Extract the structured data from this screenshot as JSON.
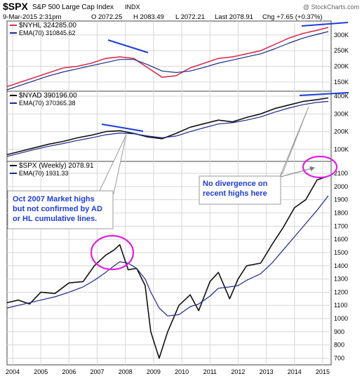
{
  "header": {
    "symbol": "$SPX",
    "name": "S&P 500 Large Cap Index",
    "exchange": "INDX",
    "credit": "@ StockCharts.com",
    "date": "9-Mar-2015 2:31pm",
    "open": "O 2072.25",
    "high": "H 2083.49",
    "low": "L 2072.21",
    "last": "Last 2078.91",
    "change": "Chg +7.65 (+0.37%)"
  },
  "colors": {
    "nyhl": "#d9304f",
    "ema": "#1a2a8a",
    "line_black": "#111111",
    "annotation": "#1f3ddb",
    "circle": "#e020e0",
    "grid": "#d6d6d6",
    "callout_border": "#9a9a9a"
  },
  "panels": [
    {
      "id": "nyhl",
      "legend": [
        {
          "label": "$NYHL 324285.00",
          "color": "#d9304f"
        },
        {
          "label": "EMA(70) 310845.62",
          "color": "#1a2a8a"
        }
      ],
      "ticks": [
        "150K",
        "200K",
        "250K",
        "300K"
      ]
    },
    {
      "id": "nyad",
      "legend": [
        {
          "label": "$NYAD 390196.00",
          "color": "#111111"
        },
        {
          "label": "EMA(70) 370365.38",
          "color": "#1a2a8a"
        }
      ],
      "ticks": [
        "100K",
        "200K",
        "300K",
        "400K"
      ]
    },
    {
      "id": "spx",
      "legend": [
        {
          "label": "$SPX (Weekly) 2078.91",
          "color": "#111111"
        },
        {
          "label": "EMA(70) 1931.33",
          "color": "#1a2a8a"
        }
      ],
      "ticks": [
        "700",
        "800",
        "900",
        "1000",
        "1100",
        "1200",
        "1300",
        "1400",
        "1500",
        "1600",
        "1700",
        "1800",
        "1900",
        "2000",
        "2100"
      ]
    }
  ],
  "annotations": {
    "left_callout": "Oct 2007 Market highs but not confirmed by AD or HL cumulative lines.",
    "right_callout": "No divergence on recent highs here"
  },
  "chart_data": [
    {
      "type": "line",
      "panel": "nyhl",
      "x": [
        2003.8,
        2004.3,
        2004.8,
        2005.3,
        2005.8,
        2006.3,
        2006.8,
        2007.3,
        2007.8,
        2008.3,
        2008.8,
        2009.3,
        2009.8,
        2010.3,
        2010.8,
        2011.3,
        2011.8,
        2012.3,
        2012.8,
        2013.3,
        2013.8,
        2014.3,
        2014.8,
        2015.2
      ],
      "series": [
        {
          "name": "$NYHL",
          "values": [
            135000,
            150000,
            165000,
            180000,
            195000,
            200000,
            210000,
            225000,
            230000,
            225000,
            195000,
            165000,
            170000,
            195000,
            210000,
            225000,
            230000,
            240000,
            250000,
            270000,
            290000,
            305000,
            315000,
            324285
          ]
        },
        {
          "name": "EMA(70)",
          "values": [
            125000,
            140000,
            155000,
            170000,
            182000,
            192000,
            202000,
            212000,
            222000,
            222000,
            205000,
            185000,
            180000,
            185000,
            197000,
            210000,
            220000,
            230000,
            240000,
            256000,
            274000,
            290000,
            302000,
            310846
          ]
        }
      ],
      "ylim": [
        125000,
        340000
      ]
    },
    {
      "type": "line",
      "panel": "nyad",
      "x": [
        2003.8,
        2004.3,
        2004.8,
        2005.3,
        2005.8,
        2006.3,
        2006.8,
        2007.3,
        2007.8,
        2008.3,
        2008.8,
        2009.3,
        2009.8,
        2010.3,
        2010.8,
        2011.3,
        2011.8,
        2012.3,
        2012.8,
        2013.3,
        2013.8,
        2014.3,
        2014.8,
        2015.2
      ],
      "series": [
        {
          "name": "$NYAD",
          "values": [
            70000,
            90000,
            110000,
            130000,
            145000,
            165000,
            180000,
            200000,
            205000,
            190000,
            170000,
            160000,
            190000,
            225000,
            245000,
            265000,
            255000,
            280000,
            300000,
            330000,
            350000,
            370000,
            380000,
            390196
          ]
        },
        {
          "name": "EMA(70)",
          "values": [
            60000,
            80000,
            100000,
            118000,
            133000,
            150000,
            165000,
            182000,
            192000,
            188000,
            175000,
            165000,
            175000,
            200000,
            222000,
            243000,
            250000,
            265000,
            283000,
            310000,
            333000,
            352000,
            365000,
            370365
          ]
        }
      ],
      "ylim": [
        40000,
        420000
      ]
    },
    {
      "type": "line",
      "panel": "spx",
      "x": [
        2003.8,
        2004.2,
        2004.6,
        2005.0,
        2005.5,
        2006.0,
        2006.5,
        2006.9,
        2007.3,
        2007.6,
        2007.8,
        2008.1,
        2008.4,
        2008.7,
        2008.9,
        2009.2,
        2009.5,
        2009.9,
        2010.3,
        2010.6,
        2011.0,
        2011.3,
        2011.7,
        2012.0,
        2012.3,
        2012.8,
        2013.2,
        2013.6,
        2014.0,
        2014.4,
        2014.8,
        2015.2
      ],
      "series": [
        {
          "name": "$SPX (Weekly)",
          "values": [
            1120,
            1140,
            1110,
            1200,
            1190,
            1270,
            1280,
            1400,
            1480,
            1520,
            1560,
            1370,
            1380,
            1250,
            900,
            700,
            900,
            1100,
            1180,
            1060,
            1280,
            1350,
            1150,
            1300,
            1400,
            1420,
            1560,
            1690,
            1840,
            1900,
            2050,
            2079
          ]
        },
        {
          "name": "EMA(70)",
          "values": [
            1080,
            1100,
            1120,
            1140,
            1165,
            1200,
            1240,
            1290,
            1350,
            1400,
            1430,
            1420,
            1380,
            1300,
            1200,
            1080,
            1020,
            1030,
            1090,
            1110,
            1170,
            1230,
            1240,
            1250,
            1290,
            1340,
            1420,
            1520,
            1620,
            1720,
            1820,
            1931
          ]
        }
      ],
      "ylim": [
        660,
        2180
      ]
    },
    {
      "type": "axis",
      "x_tick_labels": [
        "2004",
        "2005",
        "2006",
        "2007",
        "2008",
        "2009",
        "2010",
        "2011",
        "2012",
        "2013",
        "2014",
        "2015"
      ],
      "xlim": [
        2003.8,
        2015.3
      ]
    }
  ]
}
